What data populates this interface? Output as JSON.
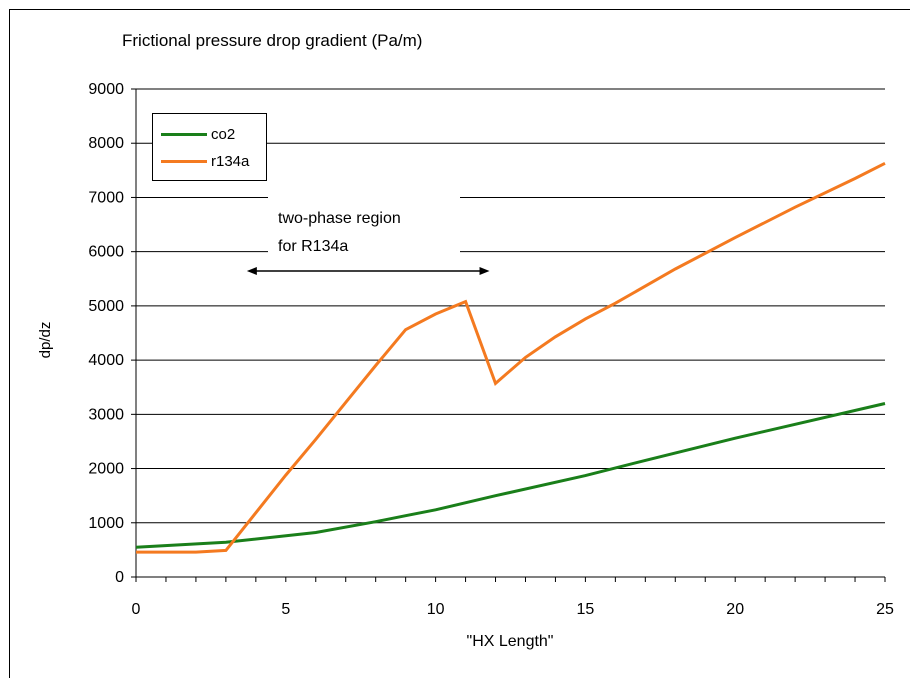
{
  "chart_data": {
    "type": "line",
    "title": "Frictional pressure drop gradient (Pa/m)",
    "xlabel": "\"HX Length\"",
    "ylabel": "dp/dz",
    "xlim": [
      0,
      25
    ],
    "ylim": [
      0,
      9000
    ],
    "x_ticks": [
      0,
      5,
      10,
      15,
      20,
      25
    ],
    "y_ticks": [
      0,
      1000,
      2000,
      3000,
      4000,
      5000,
      6000,
      7000,
      8000,
      9000
    ],
    "grid": "horizontal",
    "legend_position": "top-left",
    "series": [
      {
        "name": "co2",
        "color": "#1a7f1a",
        "x": [
          0,
          3,
          6,
          8,
          9,
          10,
          12,
          15,
          17,
          20,
          25
        ],
        "y": [
          550,
          640,
          820,
          1020,
          1130,
          1240,
          1500,
          1870,
          2150,
          2560,
          3200
        ]
      },
      {
        "name": "r134a",
        "color": "#f47a20",
        "x": [
          0,
          2,
          3,
          5,
          6,
          7,
          8,
          9,
          10,
          11,
          12,
          13,
          14,
          15,
          16,
          18,
          20,
          22,
          24,
          25
        ],
        "y": [
          460,
          460,
          490,
          1880,
          2540,
          3220,
          3900,
          4560,
          4850,
          5080,
          3570,
          4050,
          4430,
          4760,
          5050,
          5680,
          6260,
          6820,
          7350,
          7630
        ]
      }
    ],
    "annotations": [
      {
        "text_lines": [
          "two-phase region",
          "for R134a"
        ],
        "arrow_from_x": 3.7,
        "arrow_to_x": 11.8,
        "arrow_y": 5700
      }
    ]
  }
}
